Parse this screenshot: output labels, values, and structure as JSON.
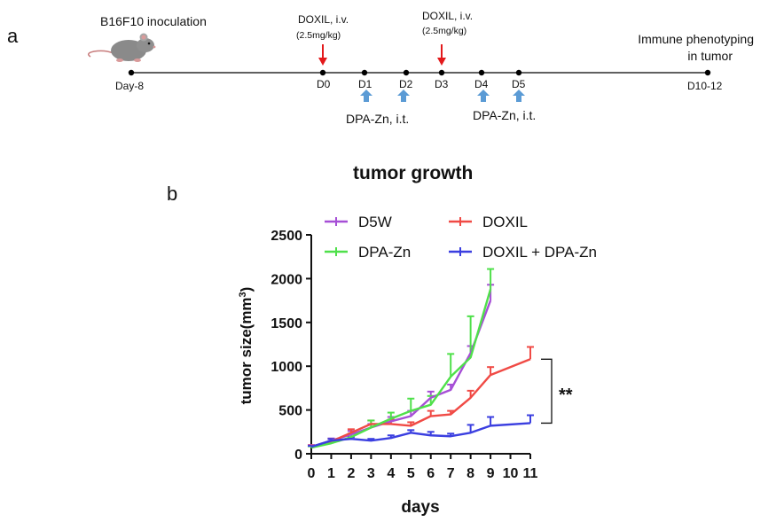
{
  "panel_a": {
    "letter": "a",
    "inoculation_label": "B16F10 inoculation",
    "doxil_label": "DOXIL, i.v.",
    "doxil_dose": "(2.5mg/kg)",
    "dpa_label": "DPA-Zn, i.t.",
    "endpoint_label_line1": "Immune phenotyping",
    "endpoint_label_line2": "in tumor",
    "timepoints": [
      "Day-8",
      "D0",
      "D1",
      "D2",
      "D3",
      "D4",
      "D5",
      "D10-12"
    ],
    "doxil_days": [
      "D0",
      "D3"
    ],
    "dpa_days": [
      "D1",
      "D2",
      "D4",
      "D5"
    ],
    "colors": {
      "doxil_arrow": "#e3191b",
      "dpa_arrow": "#5b9bd5",
      "timeline": "#000000"
    }
  },
  "panel_b": {
    "letter": "b",
    "significance": "**"
  },
  "chart_data": {
    "type": "line",
    "title": "tumor growth",
    "xlabel": "days",
    "ylabel_main": "tumor size(mm",
    "ylabel_sup": "3",
    "ylabel_close": ")",
    "xlim": [
      0,
      11
    ],
    "ylim": [
      0,
      2500
    ],
    "xticks": [
      0,
      1,
      2,
      3,
      4,
      5,
      6,
      7,
      8,
      9,
      10,
      11
    ],
    "yticks": [
      0,
      500,
      1000,
      1500,
      2000,
      2500
    ],
    "legend_position": "top",
    "grid": false,
    "series": [
      {
        "name": "D5W",
        "color": "#a64fd6",
        "x": [
          0,
          1,
          2,
          3,
          4,
          5,
          6,
          7,
          8,
          9
        ],
        "y": [
          80,
          150,
          220,
          300,
          370,
          430,
          640,
          730,
          1150,
          1750
        ],
        "err": [
          20,
          25,
          40,
          40,
          50,
          60,
          70,
          60,
          80,
          180
        ]
      },
      {
        "name": "DOXIL",
        "color": "#f04a45",
        "x": [
          0,
          1,
          2,
          3,
          4,
          5,
          6,
          7,
          8,
          9,
          11
        ],
        "y": [
          80,
          140,
          240,
          340,
          340,
          320,
          430,
          450,
          640,
          900,
          1080
        ],
        "err": [
          15,
          30,
          40,
          40,
          50,
          40,
          60,
          40,
          80,
          90,
          140
        ]
      },
      {
        "name": "DPA-Zn",
        "color": "#4fe04a",
        "x": [
          0,
          1,
          2,
          3,
          4,
          5,
          6,
          7,
          8,
          9
        ],
        "y": [
          70,
          120,
          190,
          300,
          400,
          490,
          560,
          880,
          1100,
          1880
        ],
        "err": [
          15,
          20,
          40,
          80,
          70,
          140,
          100,
          260,
          470,
          230
        ]
      },
      {
        "name": "DOXIL + DPA-Zn",
        "color": "#3b3fe0",
        "x": [
          0,
          1,
          2,
          3,
          4,
          5,
          6,
          7,
          8,
          9,
          11
        ],
        "y": [
          80,
          150,
          170,
          150,
          180,
          240,
          210,
          200,
          240,
          320,
          350
        ],
        "err": [
          10,
          20,
          20,
          20,
          30,
          30,
          40,
          30,
          90,
          100,
          90
        ]
      }
    ]
  }
}
